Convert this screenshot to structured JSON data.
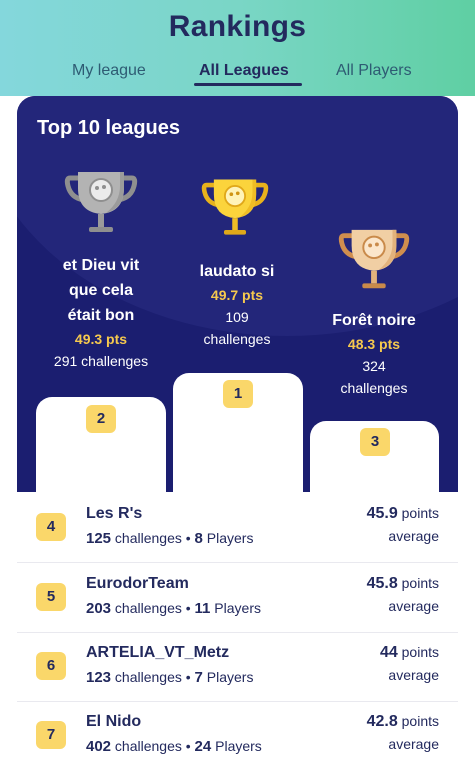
{
  "header": {
    "title": "Rankings",
    "tabs": [
      {
        "label": "My league",
        "active": false
      },
      {
        "label": "All Leagues",
        "active": true
      },
      {
        "label": "All Players",
        "active": false
      }
    ]
  },
  "podium": {
    "title": "Top 10 leagues",
    "first": {
      "rank": "1",
      "name": "laudato si",
      "points": "49.7 pts",
      "challenges": "109",
      "challenges_label": "challenges",
      "trophy": "gold-trophy-icon"
    },
    "second": {
      "rank": "2",
      "name_lines": [
        "et Dieu vit",
        "que cela",
        "était bon"
      ],
      "points": "49.3 pts",
      "challenges": "291 challenges",
      "trophy": "silver-trophy-icon"
    },
    "third": {
      "rank": "3",
      "name": "Forêt noire",
      "points": "48.3 pts",
      "challenges": "324",
      "challenges_label": "challenges",
      "trophy": "bronze-trophy-icon"
    }
  },
  "leagues": [
    {
      "rank": "4",
      "name": "Les R's",
      "challenges": "125",
      "challenges_label": "challenges",
      "players": "8",
      "players_label": "Players",
      "points": "45.9",
      "points_label": "points",
      "average_label": "average"
    },
    {
      "rank": "5",
      "name": "EurodorTeam",
      "challenges": "203",
      "challenges_label": "challenges",
      "players": "11",
      "players_label": "Players",
      "points": "45.8",
      "points_label": "points",
      "average_label": "average"
    },
    {
      "rank": "6",
      "name": "ARTELIA_VT_Metz",
      "challenges": "123",
      "challenges_label": "challenges",
      "players": "7",
      "players_label": "Players",
      "points": "44",
      "points_label": "points",
      "average_label": "average"
    },
    {
      "rank": "7",
      "name": "El Nido",
      "challenges": "402",
      "challenges_label": "challenges",
      "players": "24",
      "players_label": "Players",
      "points": "42.8",
      "points_label": "points",
      "average_label": "average"
    }
  ],
  "colors": {
    "navy": "#1b1e70",
    "gold": "#f6c94e",
    "badge": "#fad76a",
    "text_dark": "#232a5e"
  }
}
